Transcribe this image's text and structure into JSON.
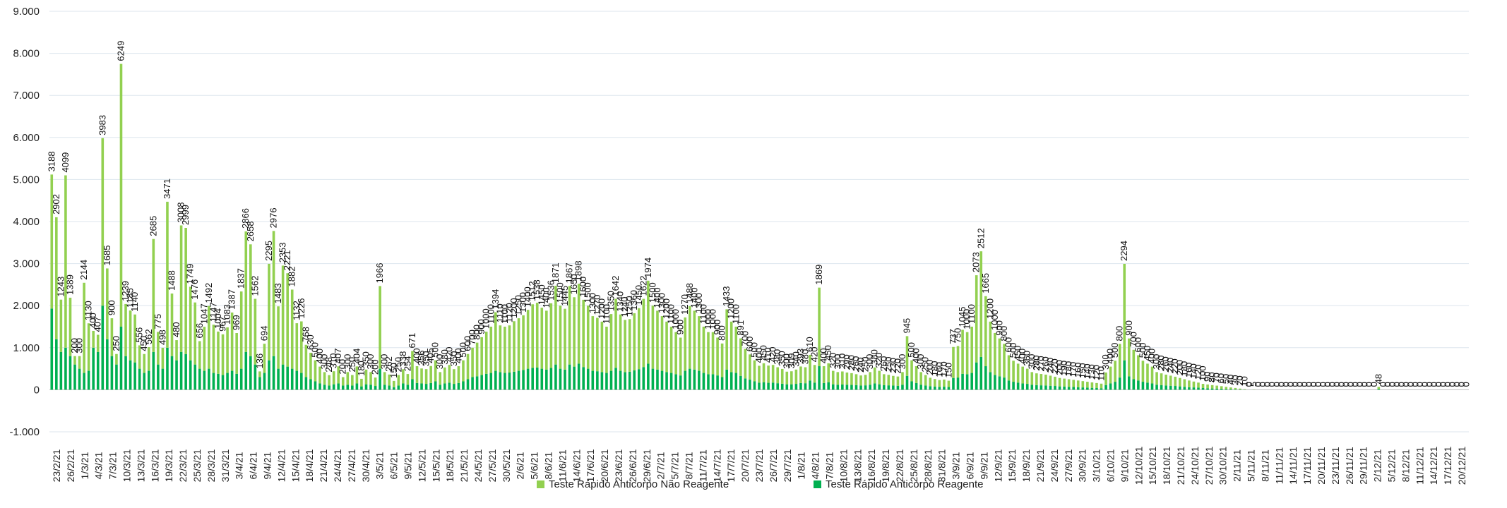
{
  "chart_data": {
    "type": "bar",
    "stacked": true,
    "title": "",
    "xlabel": "",
    "ylabel": "",
    "ylim": [
      -1000,
      9000
    ],
    "yticks": [
      -1000,
      0,
      1000,
      2000,
      3000,
      4000,
      5000,
      6000,
      7000,
      8000,
      9000
    ],
    "ytick_labels": [
      "-1.000",
      "0",
      "1.000",
      "2.000",
      "3.000",
      "4.000",
      "5.000",
      "6.000",
      "7.000",
      "8.000",
      "9.000"
    ],
    "grid": true,
    "legend_position": "bottom",
    "x_start_date": "23/2/21",
    "x_end_date": "20/12/21",
    "x_tick_labels": [
      "23/2/21",
      "26/2/21",
      "1/3/21",
      "4/3/21",
      "7/3/21",
      "10/3/21",
      "13/3/21",
      "16/3/21",
      "19/3/21",
      "22/3/21",
      "25/3/21",
      "28/3/21",
      "31/3/21",
      "3/4/21",
      "6/4/21",
      "9/4/21",
      "12/4/21",
      "15/4/21",
      "18/4/21",
      "21/4/21",
      "24/4/21",
      "27/4/21",
      "30/4/21",
      "3/5/21",
      "6/5/21",
      "9/5/21",
      "12/5/21",
      "15/5/21",
      "18/5/21",
      "21/5/21",
      "24/5/21",
      "27/5/21",
      "30/5/21",
      "2/6/21",
      "5/6/21",
      "8/6/21",
      "11/6/21",
      "14/6/21",
      "17/6/21",
      "20/6/21",
      "23/6/21",
      "26/6/21",
      "29/6/21",
      "2/7/21",
      "5/7/21",
      "8/7/21",
      "11/7/21",
      "14/7/21",
      "17/7/21",
      "20/7/21",
      "23/7/21",
      "26/7/21",
      "29/7/21",
      "1/8/21",
      "4/8/21",
      "7/8/21",
      "10/8/21",
      "13/8/21",
      "16/8/21",
      "19/8/21",
      "22/8/21",
      "25/8/21",
      "28/8/21",
      "31/8/21",
      "3/9/21",
      "6/9/21",
      "9/9/21",
      "12/9/21",
      "15/9/21",
      "18/9/21",
      "21/9/21",
      "24/9/21",
      "27/9/21",
      "30/9/21",
      "3/10/21",
      "6/10/21",
      "9/10/21",
      "12/10/21",
      "15/10/21",
      "18/10/21",
      "21/10/21",
      "24/10/21",
      "27/10/21",
      "30/10/21",
      "2/11/21",
      "5/11/21",
      "8/11/21",
      "11/11/21",
      "14/11/21",
      "17/11/21",
      "20/11/21",
      "23/11/21",
      "26/11/21",
      "29/11/21",
      "2/12/21",
      "5/12/21",
      "8/12/21",
      "11/12/21",
      "14/12/21",
      "17/12/21",
      "20/12/21"
    ],
    "series": [
      {
        "name": "Teste Rápido Anticorpo Não Reagente",
        "color": "#92d050"
      },
      {
        "name": "Teste Rápido Anticorpo Reagente",
        "color": "#00b050"
      }
    ],
    "values_nao_reagente": [
      3188,
      2902,
      1243,
      4099,
      1389,
      200,
      300,
      2144,
      1130,
      400,
      407,
      3983,
      1685,
      900,
      250,
      6249,
      1239,
      1185,
      1140,
      556,
      450,
      562,
      2685,
      775,
      498,
      3471,
      1488,
      480,
      3008,
      2999,
      1749,
      1476,
      656,
      1047,
      1492,
      1147,
      1004,
      967,
      1083,
      1387,
      969,
      1837,
      2866,
      2658,
      1562,
      136,
      694,
      2295,
      2976,
      1483,
      2353,
      2221,
      1882,
      1132,
      1226,
      768,
      630,
      500,
      400,
      300,
      248,
      310,
      407,
      200,
      300,
      250,
      404,
      180,
      350,
      300,
      200,
      1966,
      300,
      262,
      150,
      250,
      338,
      254,
      671,
      400,
      356,
      350,
      405,
      500,
      300,
      380,
      420,
      350,
      400,
      500,
      600,
      700,
      800,
      900,
      1000,
      1100,
      1394,
      1110,
      1100,
      1120,
      1200,
      1250,
      1300,
      1400,
      1512,
      1538,
      1450,
      1400,
      1536,
      1871,
      1500,
      1445,
      1867,
      1650,
      1898,
      1600,
      1500,
      1300,
      1270,
      1200,
      1100,
      1350,
      1642,
      1340,
      1240,
      1250,
      1360,
      1450,
      1622,
      1974,
      1500,
      1400,
      1300,
      1200,
      1100,
      1000,
      900,
      1270,
      1488,
      1400,
      1300,
      1100,
      1000,
      1000,
      900,
      800,
      1433,
      1200,
      1100,
      891,
      700,
      600,
      500,
      400,
      450,
      410,
      420,
      380,
      350,
      300,
      309,
      340,
      393,
      380,
      610,
      420,
      1869,
      400,
      450,
      320,
      300,
      310,
      290,
      280,
      260,
      240,
      250,
      300,
      380,
      320,
      260,
      250,
      230,
      220,
      300,
      945,
      500,
      400,
      300,
      250,
      200,
      180,
      160,
      170,
      150,
      737,
      750,
      1045,
      1000,
      1100,
      2073,
      2512,
      1665,
      1200,
      1000,
      900,
      800,
      600,
      500,
      450,
      400,
      360,
      300,
      280,
      270,
      260,
      240,
      220,
      200,
      190,
      180,
      170,
      160,
      150,
      140,
      130,
      120,
      110,
      300,
      400,
      500,
      800,
      2294,
      900,
      700,
      600,
      500,
      450,
      400,
      300,
      280,
      260,
      240,
      220,
      200,
      180,
      160,
      140,
      120,
      100,
      90,
      80,
      70,
      60,
      50,
      40,
      30,
      20,
      10,
      0,
      5,
      0,
      0,
      0,
      0,
      0,
      0,
      0,
      0,
      0,
      0,
      0,
      0,
      0,
      0,
      0,
      0,
      0,
      0,
      0,
      0,
      0,
      0,
      0,
      0,
      0,
      0,
      48,
      0,
      0,
      0,
      0,
      0,
      0,
      0,
      0,
      0,
      0,
      0,
      0,
      0,
      0,
      0,
      0,
      0,
      0,
      0
    ],
    "values_reagente": [
      1930,
      1200,
      900,
      1000,
      800,
      600,
      500,
      400,
      450,
      1000,
      900,
      2000,
      1200,
      800,
      600,
      1500,
      800,
      700,
      650,
      500,
      400,
      450,
      900,
      600,
      500,
      1000,
      800,
      700,
      900,
      850,
      700,
      600,
      500,
      450,
      500,
      400,
      380,
      350,
      400,
      450,
      380,
      500,
      900,
      800,
      600,
      300,
      400,
      700,
      800,
      500,
      600,
      550,
      500,
      450,
      400,
      300,
      250,
      200,
      150,
      120,
      100,
      130,
      150,
      100,
      120,
      100,
      150,
      80,
      130,
      120,
      90,
      500,
      120,
      100,
      60,
      100,
      150,
      120,
      250,
      160,
      150,
      140,
      160,
      200,
      120,
      150,
      170,
      140,
      160,
      200,
      250,
      300,
      320,
      350,
      380,
      400,
      450,
      420,
      400,
      410,
      430,
      450,
      470,
      500,
      520,
      530,
      500,
      480,
      520,
      600,
      500,
      480,
      600,
      550,
      620,
      540,
      500,
      450,
      440,
      420,
      400,
      450,
      520,
      450,
      420,
      430,
      460,
      490,
      540,
      620,
      500,
      480,
      450,
      420,
      400,
      370,
      340,
      450,
      500,
      480,
      450,
      400,
      370,
      370,
      340,
      300,
      480,
      420,
      400,
      330,
      270,
      240,
      200,
      170,
      180,
      165,
      170,
      155,
      145,
      130,
      130,
      140,
      160,
      155,
      220,
      170,
      560,
      160,
      180,
      130,
      120,
      125,
      120,
      115,
      110,
      100,
      105,
      120,
      150,
      130,
      110,
      105,
      100,
      95,
      120,
      330,
      200,
      160,
      120,
      100,
      85,
      75,
      70,
      72,
      65,
      280,
      290,
      380,
      370,
      400,
      650,
      780,
      560,
      420,
      350,
      320,
      290,
      220,
      190,
      170,
      150,
      140,
      120,
      110,
      105,
      100,
      95,
      90,
      80,
      75,
      70,
      65,
      60,
      55,
      50,
      45,
      40,
      35,
      110,
      150,
      190,
      290,
      700,
      320,
      250,
      220,
      190,
      170,
      150,
      120,
      110,
      100,
      95,
      90,
      80,
      70,
      60,
      55,
      50,
      40,
      35,
      30,
      28,
      25,
      20,
      15,
      12,
      8,
      4,
      0,
      2,
      0,
      0,
      0,
      0,
      0,
      0,
      0,
      0,
      0,
      0,
      0,
      0,
      0,
      0,
      0,
      0,
      0,
      0,
      0,
      0,
      0,
      0,
      0,
      0,
      0,
      0,
      20,
      0,
      0,
      0,
      0,
      0,
      0,
      0,
      0,
      0,
      0,
      0,
      0,
      0,
      0,
      0,
      0,
      0,
      0,
      0
    ]
  }
}
